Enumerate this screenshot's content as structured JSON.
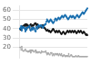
{
  "chart_data": {
    "type": "line",
    "categories": [
      null,
      null,
      null,
      null,
      null,
      null,
      null,
      null,
      null,
      null,
      null,
      null,
      null,
      null,
      null,
      null,
      null,
      null,
      null,
      null,
      null,
      null,
      null,
      null,
      null,
      null,
      null,
      null,
      null,
      null,
      null,
      null,
      null,
      null,
      null,
      null,
      null,
      null,
      null,
      null,
      null,
      null,
      null,
      null,
      null,
      null,
      null,
      null,
      null,
      null,
      null,
      null,
      null,
      null,
      null,
      null,
      null,
      null,
      null,
      null,
      null,
      null,
      null,
      null,
      null,
      null,
      null,
      null,
      null,
      null,
      null,
      null,
      null,
      null,
      null,
      null,
      null,
      null,
      null,
      null,
      null,
      null,
      null,
      null,
      null,
      null,
      null,
      null,
      null,
      null,
      null,
      null,
      null,
      null,
      null,
      null,
      null,
      null,
      null,
      null,
      null,
      null,
      null,
      null,
      null,
      null,
      null,
      null,
      null,
      null,
      null,
      null,
      null
    ],
    "series": [
      {
        "color": "#1a6faf",
        "marker": "circle",
        "values": [
          40,
          41,
          43,
          38,
          41,
          41,
          42,
          41,
          40,
          37,
          41,
          39,
          41,
          41,
          42,
          42,
          43,
          39,
          38,
          40,
          41,
          39,
          41,
          41,
          40,
          38,
          37,
          42,
          41,
          40,
          43,
          44,
          42,
          43,
          43,
          44,
          43,
          42,
          41,
          42,
          44,
          44,
          45,
          45,
          48,
          50,
          49,
          48,
          47,
          48,
          49,
          50,
          49,
          48,
          47,
          46,
          47,
          48,
          50,
          51,
          50,
          49,
          50,
          51,
          52,
          51,
          50,
          51,
          52,
          53,
          54,
          53,
          52,
          53,
          54,
          55,
          54,
          53,
          52,
          51,
          50,
          51,
          52,
          53,
          54,
          53,
          52,
          53,
          54,
          53,
          52,
          51,
          52,
          53,
          54,
          55,
          54,
          53,
          52,
          53,
          54,
          55,
          56,
          57,
          58,
          57,
          56,
          57,
          58,
          59,
          60,
          61,
          62
        ]
      },
      {
        "color": "#1a1a1a",
        "marker": "circle",
        "values": [
          40,
          39,
          40,
          41,
          42,
          43,
          42,
          44,
          43,
          45,
          43,
          45,
          43,
          44,
          42,
          43,
          41,
          44,
          45,
          43,
          43,
          44,
          43,
          44,
          45,
          46,
          46,
          44,
          44,
          45,
          43,
          41,
          43,
          42,
          43,
          42,
          41,
          43,
          44,
          43,
          41,
          41,
          40,
          39,
          38,
          38,
          39,
          38,
          37,
          38,
          37,
          36,
          37,
          38,
          39,
          40,
          39,
          38,
          37,
          36,
          37,
          38,
          37,
          36,
          37,
          38,
          37,
          36,
          35,
          34,
          35,
          36,
          37,
          36,
          35,
          34,
          35,
          36,
          37,
          38,
          37,
          36,
          37,
          38,
          37,
          36,
          37,
          38,
          37,
          36,
          37,
          38,
          37,
          36,
          35,
          36,
          37,
          38,
          37,
          36,
          37,
          38,
          37,
          36,
          35,
          36,
          37,
          36,
          35,
          34,
          33,
          34,
          33
        ]
      },
      {
        "color": "#aaaaaa",
        "marker": "circle",
        "values": [
          20,
          20,
          17,
          21,
          17,
          16,
          16,
          16,
          17,
          18,
          16,
          16,
          16,
          15,
          16,
          15,
          16,
          17,
          14,
          17,
          16,
          17,
          16,
          15,
          15,
          16,
          17,
          14,
          15,
          15,
          14,
          15,
          15,
          15,
          14,
          14,
          16,
          15,
          15,
          15,
          15,
          15,
          15,
          16,
          14,
          12,
          13,
          14,
          13,
          12,
          12,
          14,
          14,
          14,
          11,
          13,
          12,
          11,
          13,
          13,
          12,
          13,
          12,
          13,
          11,
          12,
          13,
          12,
          11,
          13,
          11,
          10,
          11,
          12,
          11,
          10,
          11,
          10,
          11,
          11,
          10,
          13,
          10,
          10,
          11,
          12,
          11,
          10,
          10,
          10,
          10,
          10,
          10,
          11,
          10,
          10,
          10,
          11,
          10,
          10,
          10,
          10,
          10,
          10,
          10,
          10,
          10,
          10,
          10,
          10,
          10,
          10,
          10
        ]
      }
    ],
    "ylim": [
      8,
      65
    ],
    "yticks": [
      20,
      30,
      40,
      50,
      60
    ],
    "grid": true,
    "tick_labels": "y"
  }
}
